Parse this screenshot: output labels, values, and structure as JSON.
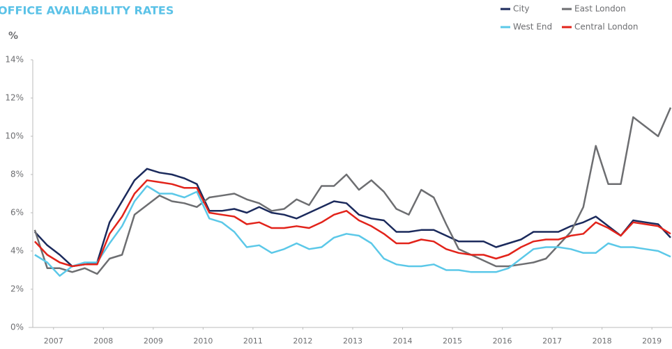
{
  "chart_data": {
    "type": "line",
    "title": "OFFICE AVAILABILITY RATES",
    "y_label": "%",
    "legend": "top-right",
    "x": [
      2007.125,
      2007.375,
      2007.625,
      2007.875,
      2008.125,
      2008.375,
      2008.625,
      2008.875,
      2009.125,
      2009.375,
      2009.625,
      2009.875,
      2010.125,
      2010.375,
      2010.625,
      2010.875,
      2011.125,
      2011.375,
      2011.625,
      2011.875,
      2012.125,
      2012.375,
      2012.625,
      2012.875,
      2013.125,
      2013.375,
      2013.625,
      2013.875,
      2014.125,
      2014.375,
      2014.625,
      2014.875,
      2015.125,
      2015.375,
      2015.625,
      2015.875,
      2016.125,
      2016.375,
      2016.625,
      2016.875,
      2017.125,
      2017.375,
      2017.625,
      2017.875,
      2018.125,
      2018.375,
      2018.625,
      2018.875,
      2019.125,
      2019.375,
      2019.625,
      2019.875
    ],
    "xlim": [
      2007,
      2019.875
    ],
    "xticks": [
      {
        "value": 2007.5,
        "label": "2007"
      },
      {
        "value": 2008.5,
        "label": "2008"
      },
      {
        "value": 2009.5,
        "label": "2009"
      },
      {
        "value": 2010.5,
        "label": "2010"
      },
      {
        "value": 2011.5,
        "label": "2011"
      },
      {
        "value": 2012.5,
        "label": "2012"
      },
      {
        "value": 2013.5,
        "label": "2013"
      },
      {
        "value": 2014.5,
        "label": "2014"
      },
      {
        "value": 2015.5,
        "label": "2015"
      },
      {
        "value": 2016.5,
        "label": "2016"
      },
      {
        "value": 2017.5,
        "label": "2017"
      },
      {
        "value": 2018.5,
        "label": "2018"
      },
      {
        "value": 2019.5,
        "label": "2019"
      }
    ],
    "ylim": [
      0,
      14
    ],
    "yticks": [
      {
        "value": 0,
        "label": "0%"
      },
      {
        "value": 2,
        "label": "2%"
      },
      {
        "value": 4,
        "label": "4%"
      },
      {
        "value": 6,
        "label": "6%"
      },
      {
        "value": 8,
        "label": "8%"
      },
      {
        "value": 10,
        "label": "10%"
      },
      {
        "value": 12,
        "label": "12%"
      },
      {
        "value": 14,
        "label": "14%"
      }
    ],
    "series": [
      {
        "name": "City",
        "color": "#1b2a5c",
        "values": [
          5.0,
          4.3,
          3.8,
          3.2,
          3.3,
          3.4,
          5.5,
          6.6,
          7.7,
          8.3,
          8.1,
          8.0,
          7.8,
          7.5,
          6.1,
          6.1,
          6.2,
          6.0,
          6.3,
          6.0,
          5.9,
          5.7,
          6.0,
          6.3,
          6.6,
          6.5,
          5.9,
          5.7,
          5.6,
          5.0,
          5.0,
          5.1,
          5.1,
          4.8,
          4.5,
          4.5,
          4.5,
          4.2,
          4.4,
          4.6,
          5.0,
          5.0,
          5.0,
          5.3,
          5.5,
          5.8,
          5.3,
          4.8,
          5.6,
          5.5,
          5.4,
          4.7
        ]
      },
      {
        "name": "East London",
        "color": "#6d6e71",
        "values": [
          5.1,
          3.1,
          3.1,
          2.9,
          3.1,
          2.8,
          3.6,
          3.8,
          5.9,
          6.4,
          6.9,
          6.6,
          6.5,
          6.3,
          6.8,
          6.9,
          7.0,
          6.7,
          6.5,
          6.1,
          6.2,
          6.7,
          6.4,
          7.4,
          7.4,
          8.0,
          7.2,
          7.7,
          7.1,
          6.2,
          5.9,
          7.2,
          6.8,
          5.4,
          4.1,
          3.8,
          3.5,
          3.2,
          3.2,
          3.3,
          3.4,
          3.6,
          4.3,
          5.0,
          6.3,
          9.5,
          7.5,
          7.5,
          11.0,
          10.5,
          10.0,
          11.5
        ]
      },
      {
        "name": "West End",
        "color": "#5bc8e8",
        "values": [
          3.8,
          3.4,
          2.7,
          3.2,
          3.4,
          3.4,
          4.4,
          5.3,
          6.6,
          7.4,
          7.0,
          7.0,
          6.8,
          7.1,
          5.7,
          5.5,
          5.0,
          4.2,
          4.3,
          3.9,
          4.1,
          4.4,
          4.1,
          4.2,
          4.7,
          4.9,
          4.8,
          4.4,
          3.6,
          3.3,
          3.2,
          3.2,
          3.3,
          3.0,
          3.0,
          2.9,
          2.9,
          2.9,
          3.1,
          3.6,
          4.1,
          4.2,
          4.2,
          4.1,
          3.9,
          3.9,
          4.4,
          4.2,
          4.2,
          4.1,
          4.0,
          3.7
        ]
      },
      {
        "name": "Central London",
        "color": "#e2231a",
        "values": [
          4.5,
          3.8,
          3.4,
          3.2,
          3.3,
          3.3,
          4.9,
          5.8,
          7.0,
          7.7,
          7.6,
          7.5,
          7.3,
          7.3,
          6.0,
          5.9,
          5.8,
          5.4,
          5.5,
          5.2,
          5.2,
          5.3,
          5.2,
          5.5,
          5.9,
          6.1,
          5.6,
          5.3,
          4.9,
          4.4,
          4.4,
          4.6,
          4.5,
          4.1,
          3.9,
          3.8,
          3.8,
          3.6,
          3.8,
          4.2,
          4.5,
          4.6,
          4.6,
          4.8,
          4.9,
          5.5,
          5.2,
          4.8,
          5.5,
          5.4,
          5.3,
          4.9
        ]
      }
    ]
  }
}
